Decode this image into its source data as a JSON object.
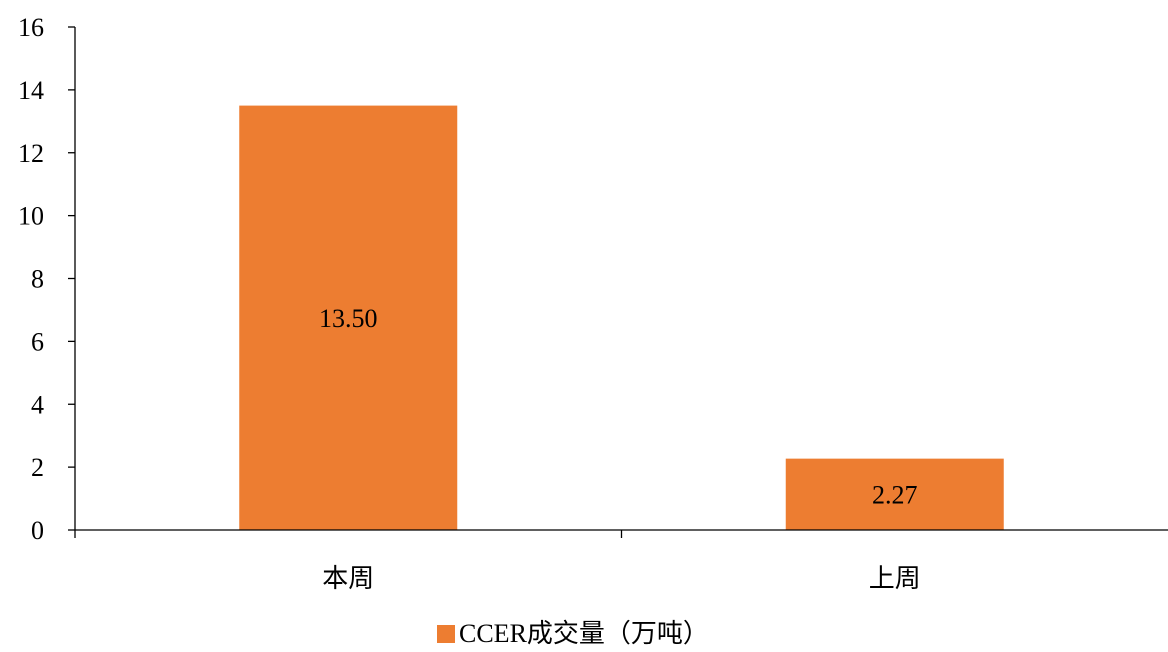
{
  "chart_data": {
    "type": "bar",
    "categories": [
      "本周",
      "上周"
    ],
    "series": [
      {
        "name": "CCER成交量（万吨）",
        "values": [
          13.5,
          2.27
        ],
        "labels": [
          "13.50",
          "2.27"
        ],
        "color": "#ED7D31"
      }
    ],
    "ylim": [
      0,
      16
    ],
    "yticks": [
      0,
      2,
      4,
      6,
      8,
      10,
      12,
      14,
      16
    ],
    "grid": false,
    "legend": {
      "position": "bottom",
      "label": "CCER成交量（万吨）"
    }
  }
}
